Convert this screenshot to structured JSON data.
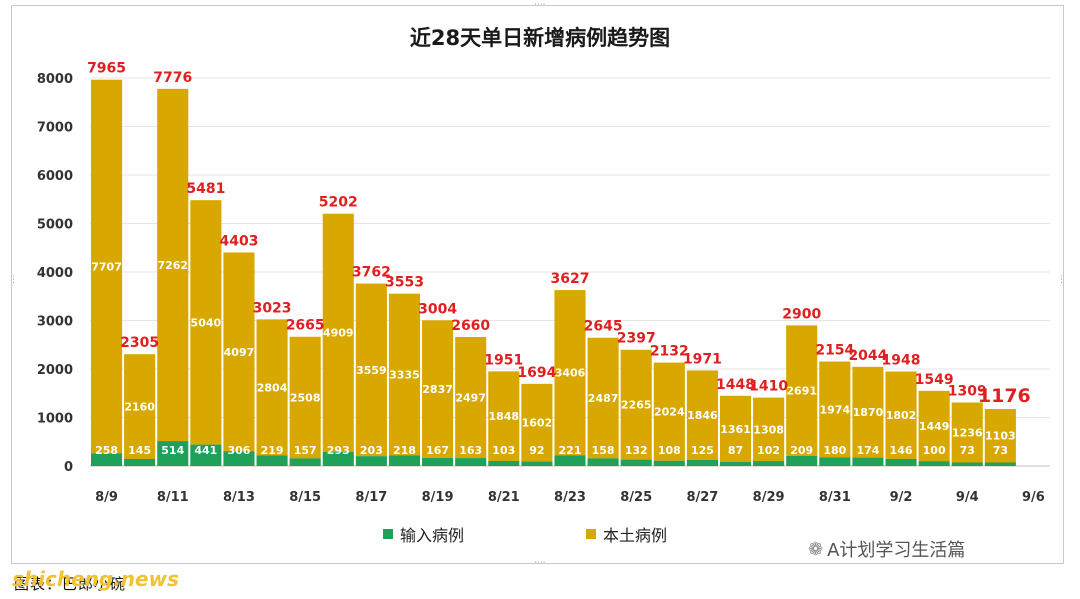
{
  "chart_data": {
    "type": "bar",
    "stacked": true,
    "title": "近28天单日新增病例趋势图",
    "categories": [
      "8/9",
      "8/10",
      "8/11",
      "8/12",
      "8/13",
      "8/14",
      "8/15",
      "8/16",
      "8/17",
      "8/18",
      "8/19",
      "8/20",
      "8/21",
      "8/22",
      "8/23",
      "8/24",
      "8/25",
      "8/26",
      "8/27",
      "8/28",
      "8/29",
      "8/30",
      "8/31",
      "9/1",
      "9/2",
      "9/3",
      "9/4",
      "9/5"
    ],
    "tick_labels": [
      "8/9",
      "8/11",
      "8/13",
      "8/15",
      "8/17",
      "8/19",
      "8/21",
      "8/23",
      "8/25",
      "8/27",
      "8/29",
      "8/31",
      "9/2",
      "9/4",
      "9/6"
    ],
    "yticks": [
      "0",
      "1000",
      "2000",
      "3000",
      "4000",
      "5000",
      "6000",
      "7000",
      "8000"
    ],
    "ylim": [
      0,
      8000
    ],
    "grid": true,
    "legend_position": "bottom",
    "series": [
      {
        "name": "输入病例",
        "color": "#1fa15a",
        "values": [
          258,
          145,
          514,
          441,
          306,
          219,
          157,
          293,
          203,
          218,
          167,
          163,
          103,
          92,
          221,
          158,
          132,
          108,
          125,
          87,
          102,
          209,
          180,
          174,
          146,
          100,
          73,
          73
        ]
      },
      {
        "name": "本土病例",
        "color": "#d9a800",
        "values": [
          7707,
          2160,
          7262,
          5040,
          4097,
          2804,
          2508,
          4909,
          3559,
          3335,
          2837,
          2497,
          1848,
          1602,
          3406,
          2487,
          2265,
          2024,
          1846,
          1361,
          1308,
          2691,
          1974,
          1870,
          1802,
          1449,
          1236,
          1103
        ]
      }
    ],
    "totals": [
      7965,
      2305,
      7776,
      5481,
      4403,
      3023,
      2665,
      5202,
      3762,
      3553,
      3004,
      2660,
      1951,
      1694,
      3627,
      2645,
      2397,
      2132,
      1971,
      1448,
      1410,
      2900,
      2154,
      2044,
      1948,
      1549,
      1309,
      1176
    ]
  },
  "footer": {
    "caption": "图表：巴郎小碗"
  },
  "watermark": {
    "site": "shicheng.news",
    "account": "A计划学习生活篇"
  },
  "colors": {
    "total_label": "#e02020",
    "inner_label": "#ffffff"
  }
}
